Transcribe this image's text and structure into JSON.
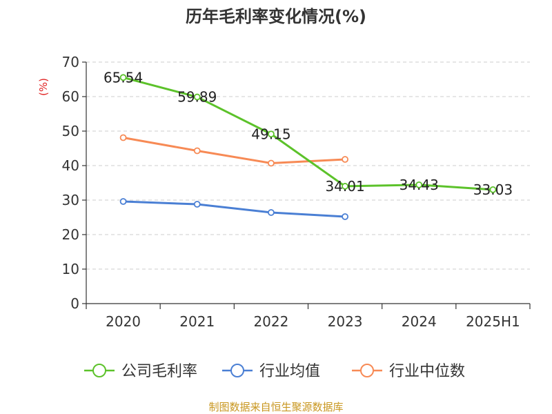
{
  "chart_data": {
    "type": "line",
    "title": "历年毛利率变化情况(%)",
    "ylabel": "(%)",
    "categories": [
      "2020",
      "2021",
      "2022",
      "2023",
      "2024",
      "2025H1"
    ],
    "ylim": [
      0,
      70
    ],
    "yticks": [
      0,
      10,
      20,
      30,
      40,
      50,
      60,
      70
    ],
    "grid": true,
    "legend_position": "bottom",
    "series": [
      {
        "name": "公司毛利率",
        "color": "#5cc22a",
        "values": [
          65.54,
          59.89,
          49.15,
          34.01,
          34.43,
          33.03
        ],
        "labels": [
          "65.54",
          "59.89",
          "49.15",
          "34.01",
          "34.43",
          "33.03"
        ]
      },
      {
        "name": "行业均值",
        "color": "#4a7fd4",
        "values": [
          29.6,
          28.8,
          26.4,
          25.2,
          null,
          null
        ]
      },
      {
        "name": "行业中位数",
        "color": "#f78a55",
        "values": [
          48.1,
          44.3,
          40.7,
          41.8,
          null,
          null
        ]
      }
    ]
  },
  "source": "制图数据来自恒生聚源数据库",
  "colors": {
    "axis": "#333333",
    "grid": "#cccccc",
    "ylabel": "#e02020",
    "source": "#c8961e"
  }
}
